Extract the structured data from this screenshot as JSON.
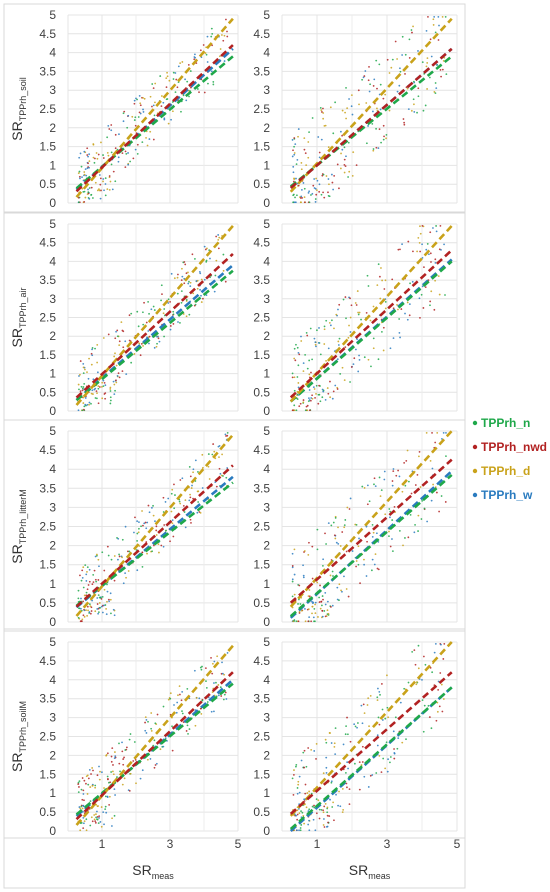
{
  "chart_data": [
    {
      "panel": "r1c1",
      "type": "scatter",
      "ylabel_main": "SR",
      "ylabel_sub": "TPPrh_soil",
      "xlim": [
        0,
        5
      ],
      "ylim": [
        0,
        5
      ],
      "fits": {
        "TPPrh_n": [
          0.2,
          3.9
        ],
        "TPPrh_nwd": [
          0.1,
          4.2
        ],
        "TPPrh_d": [
          -0.1,
          4.9
        ],
        "TPPrh_w": [
          0.15,
          4.1
        ]
      }
    },
    {
      "panel": "r1c2",
      "type": "scatter",
      "xlim": [
        0,
        5
      ],
      "ylim": [
        0,
        5
      ],
      "fits": {
        "TPPrh_n": [
          0.25,
          3.9
        ],
        "TPPrh_nwd": [
          0.2,
          4.1
        ],
        "TPPrh_d": [
          0.05,
          4.9
        ],
        "TPPrh_w": [
          0.2,
          4.1
        ]
      }
    },
    {
      "panel": "r2c1",
      "type": "scatter",
      "ylabel_main": "SR",
      "ylabel_sub": "TPPrh_air",
      "xlim": [
        0,
        5
      ],
      "ylim": [
        0,
        5
      ],
      "fits": {
        "TPPrh_n": [
          0.1,
          3.75
        ],
        "TPPrh_nwd": [
          0.15,
          4.2
        ],
        "TPPrh_d": [
          -0.1,
          4.95
        ],
        "TPPrh_w": [
          0.1,
          3.9
        ]
      }
    },
    {
      "panel": "r2c2",
      "type": "scatter",
      "xlim": [
        0,
        5
      ],
      "ylim": [
        0,
        5
      ],
      "fits": {
        "TPPrh_n": [
          0.05,
          4.0
        ],
        "TPPrh_nwd": [
          0.15,
          4.3
        ],
        "TPPrh_d": [
          0.0,
          4.95
        ],
        "TPPrh_w": [
          0.05,
          4.05
        ]
      }
    },
    {
      "panel": "r3c1",
      "type": "scatter",
      "ylabel_main": "SR",
      "ylabel_sub": "TPPrh_litterM",
      "xlim": [
        0,
        5
      ],
      "ylim": [
        0,
        5
      ],
      "fits": {
        "TPPrh_n": [
          0.25,
          3.65
        ],
        "TPPrh_nwd": [
          0.2,
          4.1
        ],
        "TPPrh_d": [
          -0.1,
          4.9
        ],
        "TPPrh_w": [
          0.2,
          3.8
        ]
      }
    },
    {
      "panel": "r3c2",
      "type": "scatter",
      "xlim": [
        0,
        5
      ],
      "ylim": [
        0,
        5
      ],
      "fits": {
        "TPPrh_n": [
          -0.05,
          3.85
        ],
        "TPPrh_nwd": [
          0.3,
          4.25
        ],
        "TPPrh_d": [
          0.15,
          5.0
        ],
        "TPPrh_w": [
          -0.1,
          3.95
        ]
      }
    },
    {
      "panel": "r4c1",
      "type": "scatter",
      "ylabel_main": "SR",
      "ylabel_sub": "TPPrh_soilM",
      "xlim": [
        0,
        5
      ],
      "ylim": [
        0,
        5
      ],
      "fits": {
        "TPPrh_n": [
          0.25,
          3.9
        ],
        "TPPrh_nwd": [
          0.1,
          4.2
        ],
        "TPPrh_d": [
          -0.1,
          4.9
        ],
        "TPPrh_w": [
          0.2,
          4.0
        ]
      }
    },
    {
      "panel": "r4c2",
      "type": "scatter",
      "xlim": [
        0,
        5
      ],
      "ylim": [
        0,
        5
      ],
      "fits": {
        "TPPrh_n": [
          -0.15,
          3.8
        ],
        "TPPrh_nwd": [
          0.25,
          4.2
        ],
        "TPPrh_d": [
          0.15,
          5.0
        ],
        "TPPrh_w": [
          -0.25,
          3.8
        ]
      }
    }
  ],
  "axes": {
    "y_ticks": [
      "0",
      "0.5",
      "1",
      "1.5",
      "2",
      "2.5",
      "3",
      "3.5",
      "4",
      "4.5",
      "5"
    ],
    "x_ticks": [
      "1",
      "3",
      "5"
    ],
    "xlabel_main": "SR",
    "xlabel_sub": "meas"
  },
  "legend": [
    {
      "label": "TPPrh_n",
      "color": "#1fa84a"
    },
    {
      "label": "TPPrh_nwd",
      "color": "#b22222"
    },
    {
      "label": "TPPrh_d",
      "color": "#c9a21a"
    },
    {
      "label": "TPPrh_w",
      "color": "#2a7bbf"
    }
  ]
}
